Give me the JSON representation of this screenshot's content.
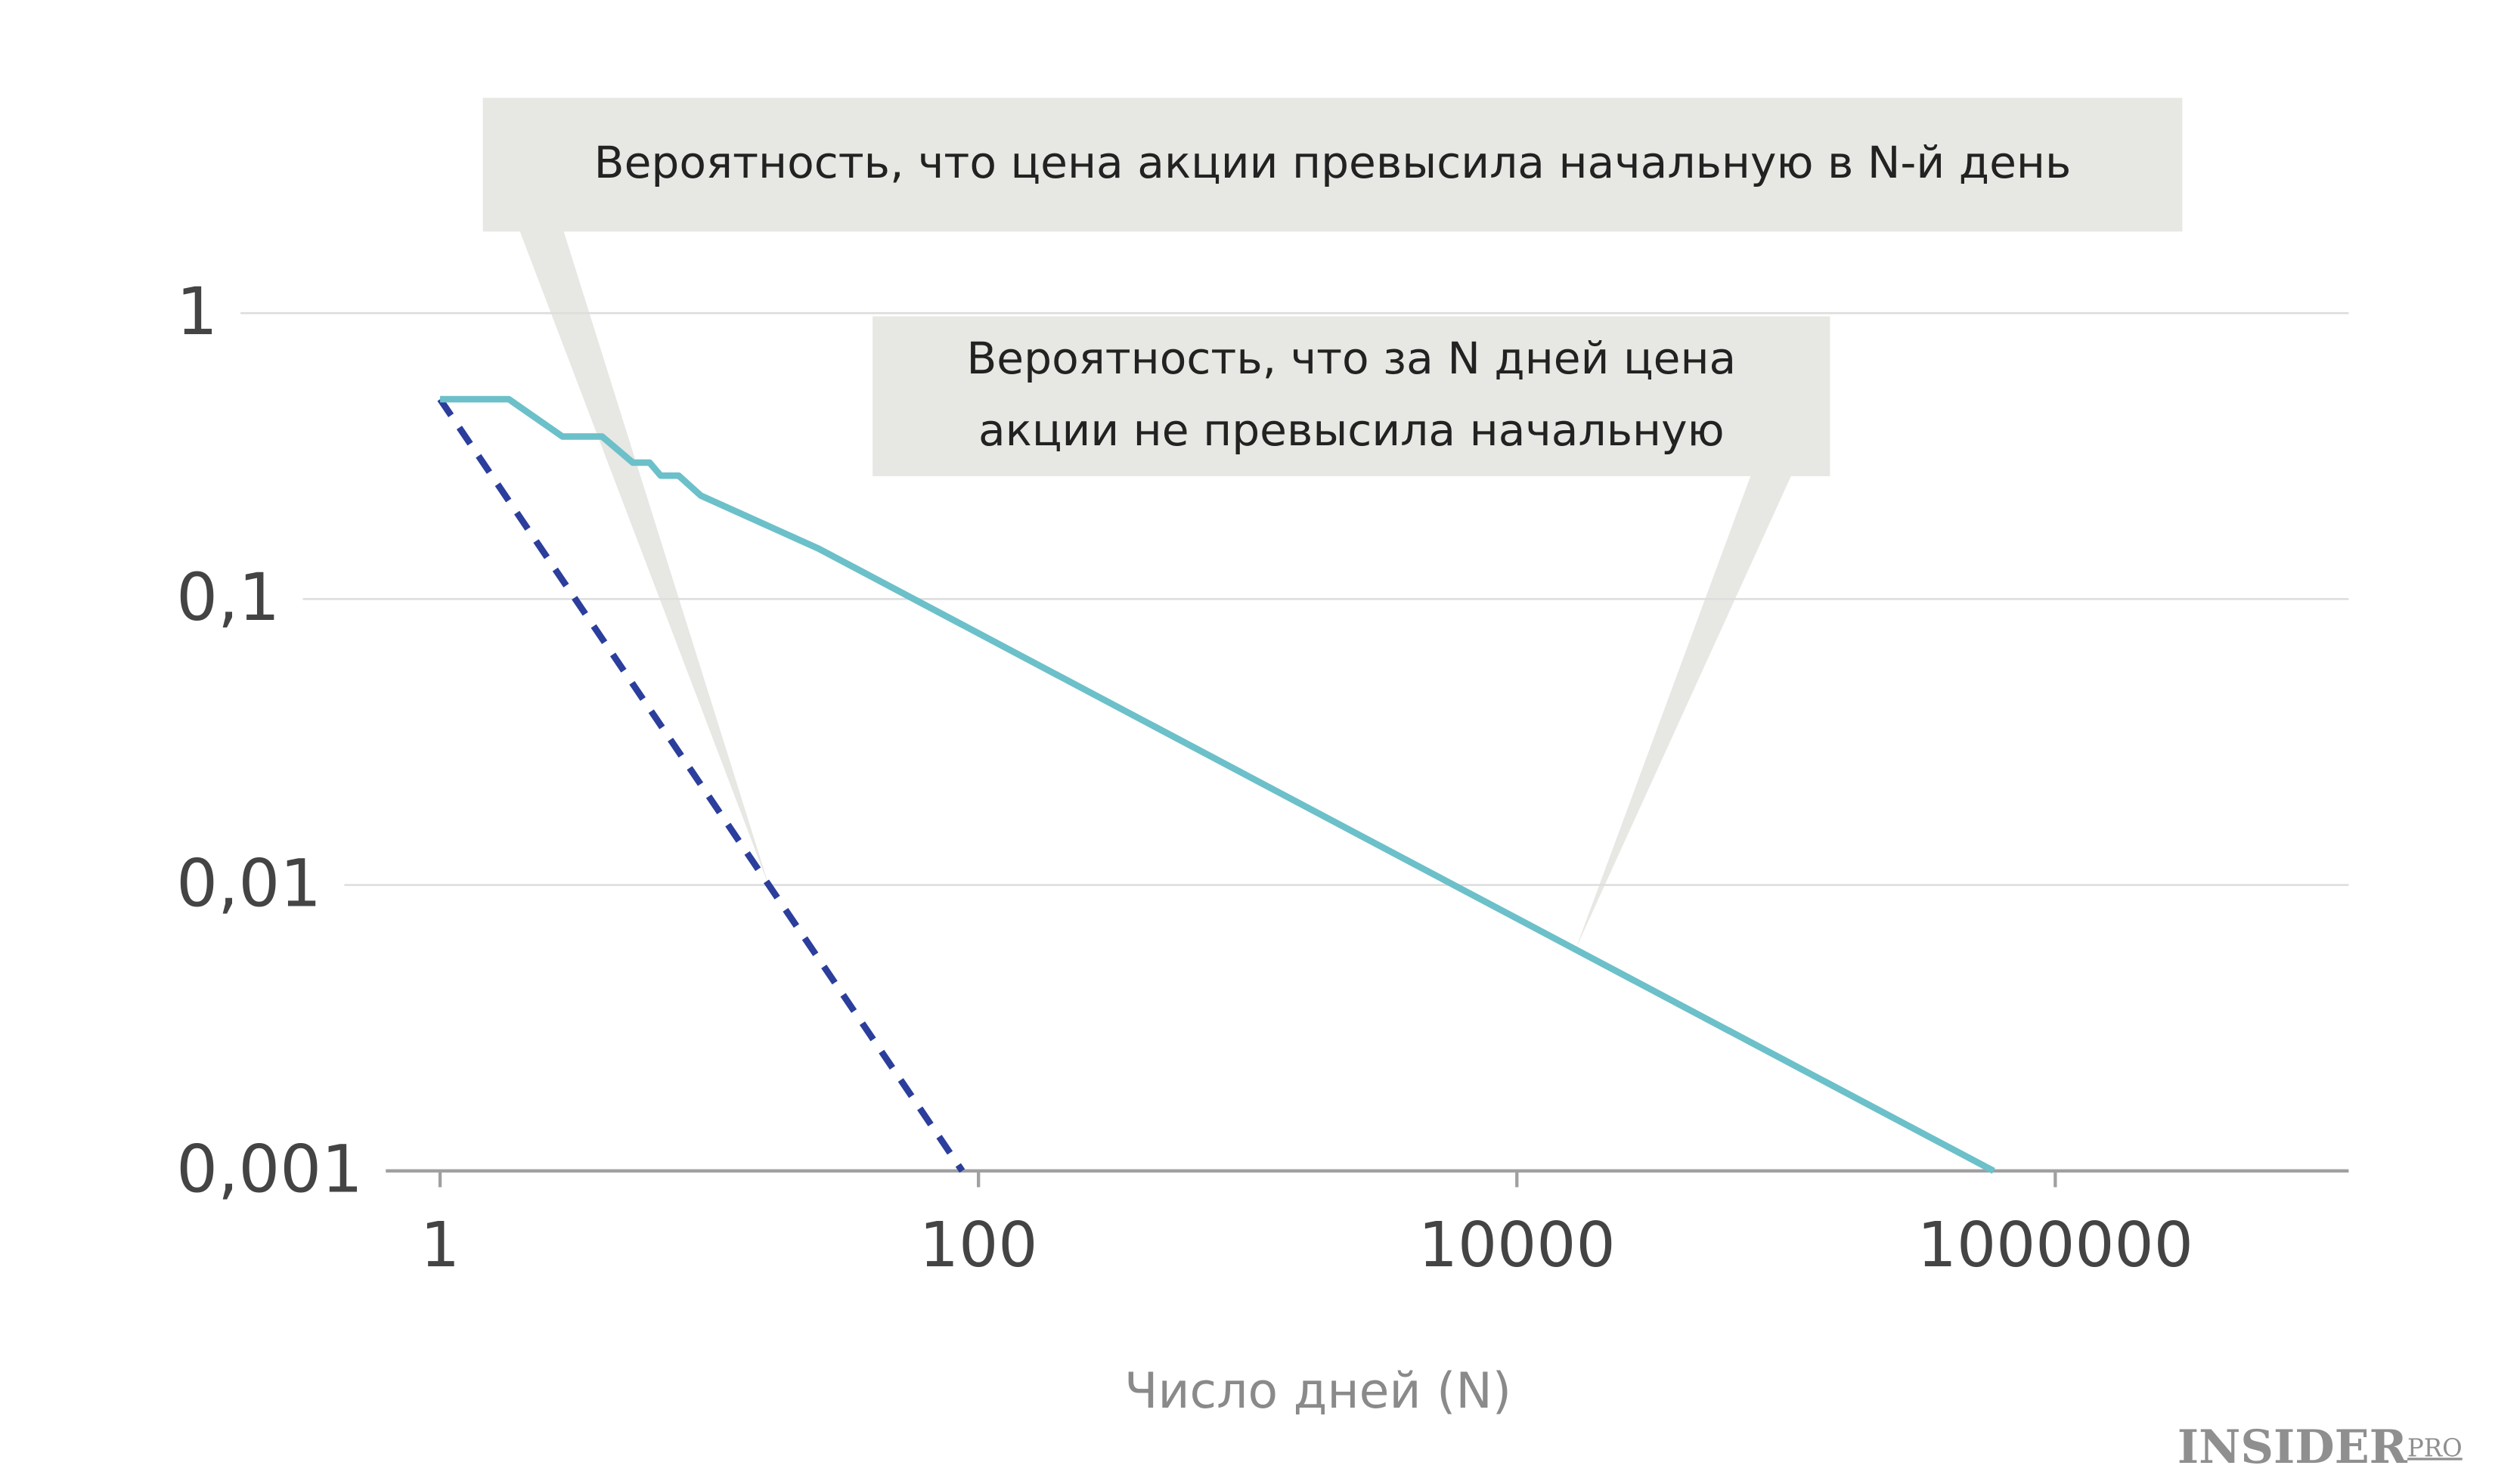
{
  "chart_data": {
    "type": "line",
    "x_label": "Число дней (N)",
    "log_x": true,
    "log_y": true,
    "grid": true,
    "xlim": [
      0.66,
      12300000
    ],
    "xticks": [
      1,
      100,
      10000,
      1000000
    ],
    "ylim": [
      0.001,
      1
    ],
    "yticks": [
      {
        "value": 0.001,
        "label": "0,001"
      },
      {
        "value": 0.01,
        "label": "0,01"
      },
      {
        "value": 0.1,
        "label": "0,1"
      },
      1
    ],
    "series": [
      {
        "name": "Вероятность, что цена акции превысила начальную в N-й день",
        "color": "#2c3e9c",
        "dashed": true,
        "x": [
          1,
          87
        ],
        "values": [
          0.5,
          0.001
        ]
      },
      {
        "name": "Вероятность, что за N дней цена акции не превысила начальную",
        "color": "#6cc0c9",
        "dashed": false,
        "x": [
          1,
          1.8,
          2.85,
          4.0,
          5.2,
          6.0,
          6.6,
          7.7,
          9.3,
          25.5,
          590000
        ],
        "values": [
          0.5,
          0.5,
          0.37,
          0.37,
          0.3,
          0.3,
          0.27,
          0.27,
          0.23,
          0.15,
          0.001
        ]
      }
    ]
  },
  "brand": {
    "name": "INSIDER",
    "suffix": "PRO"
  }
}
